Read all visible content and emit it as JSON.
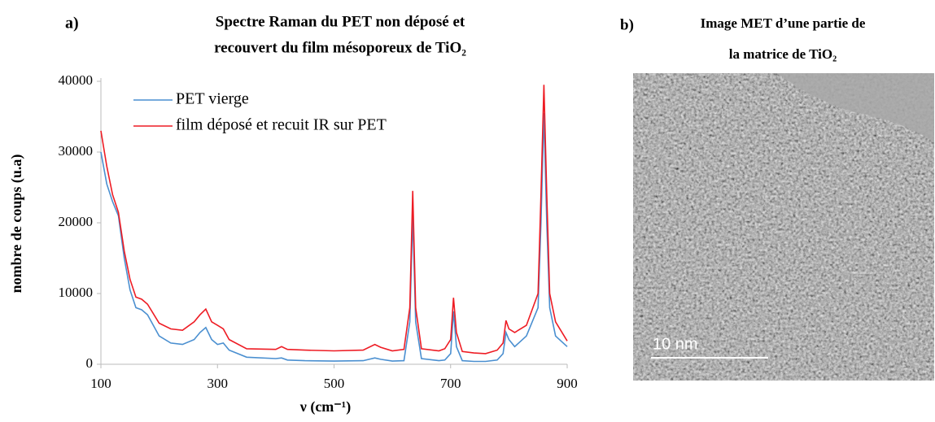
{
  "chart_data": {
    "type": "line",
    "title": [
      "Spectre Raman du PET non déposé et",
      "recouvert du film mésoporeux de TiO₂"
    ],
    "panel_label": "a)",
    "x_label": "ν (cm⁻¹)",
    "y_label": "nombre de coups (u.a)",
    "x": [
      100,
      110,
      120,
      130,
      140,
      150,
      160,
      170,
      180,
      200,
      220,
      240,
      260,
      270,
      280,
      290,
      300,
      310,
      320,
      350,
      400,
      410,
      420,
      450,
      500,
      550,
      570,
      580,
      600,
      620,
      630,
      635,
      640,
      650,
      680,
      690,
      700,
      705,
      710,
      720,
      740,
      760,
      780,
      790,
      795,
      800,
      810,
      830,
      850,
      855,
      860,
      865,
      870,
      880,
      900
    ],
    "series": [
      {
        "name": "PET vierge",
        "color": "#4a8fd0",
        "values": [
          30000,
          25500,
          23000,
          21000,
          15000,
          10500,
          8000,
          7700,
          7000,
          4000,
          3000,
          2800,
          3500,
          4500,
          5200,
          3500,
          2800,
          3000,
          2000,
          1000,
          800,
          900,
          600,
          500,
          450,
          500,
          900,
          700,
          450,
          500,
          6000,
          21000,
          6000,
          800,
          500,
          600,
          1500,
          7500,
          2500,
          500,
          400,
          400,
          600,
          1500,
          4500,
          3500,
          2500,
          4000,
          8000,
          20000,
          35500,
          20000,
          8000,
          4000,
          2500
        ]
      },
      {
        "name": "film déposé et recuit IR sur PET",
        "color": "#ee1c24",
        "values": [
          33000,
          28000,
          24000,
          21500,
          16000,
          12000,
          9500,
          9200,
          8500,
          5800,
          5000,
          4800,
          6000,
          7000,
          7800,
          6000,
          5500,
          5000,
          3500,
          2200,
          2100,
          2500,
          2100,
          2000,
          1900,
          2000,
          2800,
          2400,
          1900,
          2100,
          8000,
          24500,
          8000,
          2200,
          1900,
          2200,
          3500,
          9400,
          4500,
          1800,
          1600,
          1500,
          2000,
          3000,
          6200,
          5000,
          4500,
          5500,
          10000,
          24000,
          39500,
          24000,
          10000,
          6000,
          3300
        ]
      }
    ],
    "xlim": [
      100,
      900
    ],
    "xticks": [
      100,
      300,
      500,
      700,
      900
    ],
    "ylim": [
      0,
      40000
    ],
    "yticks": [
      0,
      10000,
      20000,
      30000,
      40000
    ],
    "grid": false,
    "legend": "top-left"
  },
  "image_panel": {
    "label": "b)",
    "title": [
      "Image MET d’une partie de",
      "la matrice de TiO₂"
    ],
    "scale_bar": "10 nm"
  }
}
